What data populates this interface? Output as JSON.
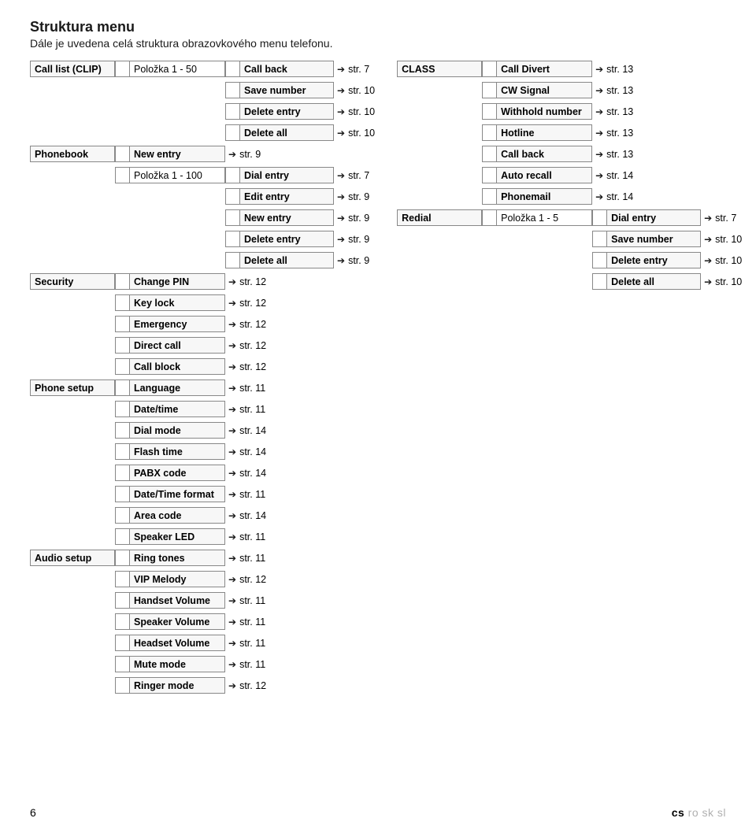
{
  "title": "Struktura menu",
  "subtitle": "Dále je uvedena celá struktura obrazovkového menu telefonu.",
  "arrow_glyph": "➔",
  "left": [
    {
      "c1": "Call list (CLIP)",
      "c2": "Položka 1 - 50",
      "c2w": "normal",
      "c3": "Call back",
      "ref": "str. 7"
    },
    {
      "c1": "",
      "c2": "",
      "c3": "Save number",
      "ref": "str. 10"
    },
    {
      "c1": "",
      "c2": "",
      "c3": "Delete entry",
      "ref": "str. 10"
    },
    {
      "c1": "",
      "c2": "",
      "c3": "Delete all",
      "ref": "str. 10"
    },
    {
      "c1": "Phonebook",
      "c2": "New entry",
      "c3": "",
      "ref": "str. 9"
    },
    {
      "c1": "",
      "c2": "Položka 1 - 100",
      "c2w": "normal",
      "c3": "Dial entry",
      "ref": "str. 7"
    },
    {
      "c1": "",
      "c2": "",
      "c3": "Edit entry",
      "ref": "str. 9"
    },
    {
      "c1": "",
      "c2": "",
      "c3": "New entry",
      "ref": "str. 9"
    },
    {
      "c1": "",
      "c2": "",
      "c3": "Delete entry",
      "ref": "str. 9"
    },
    {
      "c1": "",
      "c2": "",
      "c3": "Delete all",
      "ref": "str. 9"
    },
    {
      "c1": "Security",
      "c2": "Change PIN",
      "c3": "",
      "ref": "str. 12"
    },
    {
      "c1": "",
      "c2": "Key lock",
      "c3": "",
      "ref": "str. 12"
    },
    {
      "c1": "",
      "c2": "Emergency",
      "c3": "",
      "ref": "str. 12"
    },
    {
      "c1": "",
      "c2": "Direct call",
      "c3": "",
      "ref": "str. 12"
    },
    {
      "c1": "",
      "c2": "Call block",
      "c3": "",
      "ref": "str. 12"
    },
    {
      "c1": "Phone setup",
      "c2": "Language",
      "c3": "",
      "ref": "str. 11"
    },
    {
      "c1": "",
      "c2": "Date/time",
      "c3": "",
      "ref": "str. 11"
    },
    {
      "c1": "",
      "c2": "Dial mode",
      "c3": "",
      "ref": "str. 14"
    },
    {
      "c1": "",
      "c2": "Flash time",
      "c3": "",
      "ref": "str. 14"
    },
    {
      "c1": "",
      "c2": "PABX code",
      "c3": "",
      "ref": "str. 14"
    },
    {
      "c1": "",
      "c2": "Date/Time format",
      "c3": "",
      "ref": "str. 11"
    },
    {
      "c1": "",
      "c2": "Area code",
      "c3": "",
      "ref": "str. 14"
    },
    {
      "c1": "",
      "c2": "Speaker LED",
      "c3": "",
      "ref": "str. 11"
    },
    {
      "c1": "Audio setup",
      "c2": "Ring tones",
      "c3": "",
      "ref": "str. 11"
    },
    {
      "c1": "",
      "c2": "VIP Melody",
      "c3": "",
      "ref": "str. 12"
    },
    {
      "c1": "",
      "c2": "Handset Volume",
      "c3": "",
      "ref": "str. 11"
    },
    {
      "c1": "",
      "c2": "Speaker Volume",
      "c3": "",
      "ref": "str. 11"
    },
    {
      "c1": "",
      "c2": "Headset Volume",
      "c3": "",
      "ref": "str. 11"
    },
    {
      "c1": "",
      "c2": "Mute mode",
      "c3": "",
      "ref": "str. 11"
    },
    {
      "c1": "",
      "c2": "Ringer mode",
      "c3": "",
      "ref": "str. 12"
    }
  ],
  "right": [
    {
      "c1": "CLASS",
      "c2": "Call Divert",
      "c3": "",
      "ref": "str. 13"
    },
    {
      "c1": "",
      "c2": "CW Signal",
      "c3": "",
      "ref": "str. 13"
    },
    {
      "c1": "",
      "c2": "Withhold number",
      "c3": "",
      "ref": "str. 13"
    },
    {
      "c1": "",
      "c2": "Hotline",
      "c3": "",
      "ref": "str. 13"
    },
    {
      "c1": "",
      "c2": "Call back",
      "c3": "",
      "ref": "str. 13"
    },
    {
      "c1": "",
      "c2": "Auto recall",
      "c3": "",
      "ref": "str. 14"
    },
    {
      "c1": "",
      "c2": "Phonemail",
      "c3": "",
      "ref": "str. 14"
    },
    {
      "c1": "Redial",
      "c2": "Položka 1 - 5",
      "c2w": "normal",
      "c3": "Dial entry",
      "ref": "str. 7"
    },
    {
      "c1": "",
      "c2": "",
      "c3": "Save number",
      "ref": "str. 10"
    },
    {
      "c1": "",
      "c2": "",
      "c3": "Delete entry",
      "ref": "str. 10"
    },
    {
      "c1": "",
      "c2": "",
      "c3": "Delete all",
      "ref": "str. 10"
    }
  ],
  "footer": {
    "page": "6",
    "lang_active": "cs",
    "lang_inactive": "ro sk sl"
  }
}
